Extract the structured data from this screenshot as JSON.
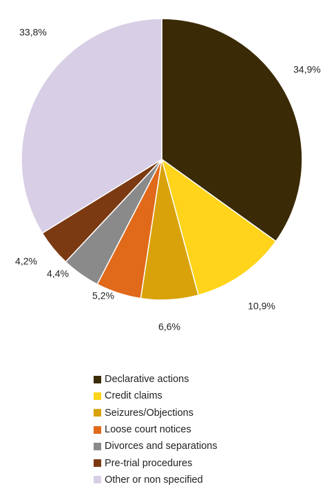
{
  "chart_data": {
    "type": "pie",
    "title": "",
    "start_angle_deg": 0,
    "direction": "clockwise",
    "legend_position": "bottom",
    "slices": [
      {
        "label": "Declarative actions",
        "value": 34.9,
        "value_label": "34,9%",
        "color": "#3a2a05"
      },
      {
        "label": "Credit claims",
        "value": 10.9,
        "value_label": "10,9%",
        "color": "#ffd41a"
      },
      {
        "label": "Seizures/Objections",
        "value": 6.6,
        "value_label": "6,6%",
        "color": "#d9a20a"
      },
      {
        "label": "Loose court notices",
        "value": 5.2,
        "value_label": "5,2%",
        "color": "#e0691a"
      },
      {
        "label": "Divorces and separations",
        "value": 4.4,
        "value_label": "4,4%",
        "color": "#8a8a8a"
      },
      {
        "label": "Pre-trial procedures",
        "value": 4.2,
        "value_label": "4,2%",
        "color": "#7b3a12"
      },
      {
        "label": "Other or non specified",
        "value": 33.8,
        "value_label": "33,8%",
        "color": "#d8cfe6"
      }
    ]
  }
}
